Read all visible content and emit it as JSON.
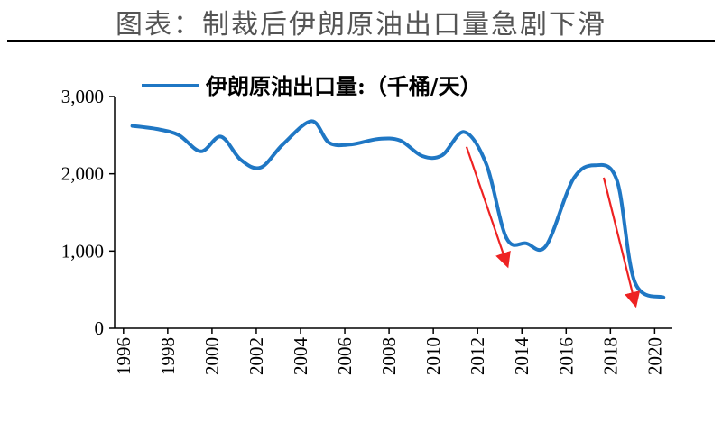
{
  "title": "图表：制裁后伊朗原油出口量急剧下滑",
  "colors": {
    "line": "#1f77c4",
    "arrow": "#ee2222",
    "axis": "#000000"
  },
  "chart_data": {
    "type": "line",
    "title": "图表：制裁后伊朗原油出口量急剧下滑",
    "xlabel": "",
    "ylabel": "",
    "ylim": [
      0,
      3000
    ],
    "xlim": [
      1995.6,
      2020.8
    ],
    "yticks": [
      0,
      1000,
      2000,
      3000
    ],
    "ytick_labels": [
      "0",
      "1,000",
      "2,000",
      "3,000"
    ],
    "xticks": [
      1996,
      1998,
      2000,
      2002,
      2004,
      2006,
      2008,
      2010,
      2012,
      2014,
      2016,
      2018,
      2020
    ],
    "xtick_labels": [
      "1996",
      "1998",
      "2000",
      "2002",
      "2004",
      "2006",
      "2008",
      "2010",
      "2012",
      "2014",
      "2016",
      "2018",
      "2020"
    ],
    "grid": false,
    "legend_position": "top",
    "series": [
      {
        "name": "伊朗原油出口量:（千桶/天）",
        "x": [
          1996.4,
          1997.5,
          1998.5,
          1999.5,
          2000.4,
          2001.3,
          2002.2,
          2003.2,
          2004.5,
          2005.3,
          2006.3,
          2007.5,
          2008.5,
          2009.5,
          2010.4,
          2011.4,
          2012.4,
          2013.3,
          2014.2,
          2015.1,
          2016.3,
          2017.3,
          2018.3,
          2019.1,
          2020.4
        ],
        "y": [
          2620,
          2580,
          2500,
          2290,
          2480,
          2180,
          2080,
          2380,
          2680,
          2400,
          2380,
          2450,
          2430,
          2230,
          2240,
          2540,
          2120,
          1170,
          1100,
          1070,
          1920,
          2110,
          1910,
          600,
          400
        ]
      }
    ],
    "annotations": [
      {
        "type": "arrow",
        "from": [
          2011.5,
          2350
        ],
        "to": [
          2013.3,
          850
        ]
      },
      {
        "type": "arrow",
        "from": [
          2017.7,
          1950
        ],
        "to": [
          2019.1,
          340
        ]
      }
    ]
  }
}
